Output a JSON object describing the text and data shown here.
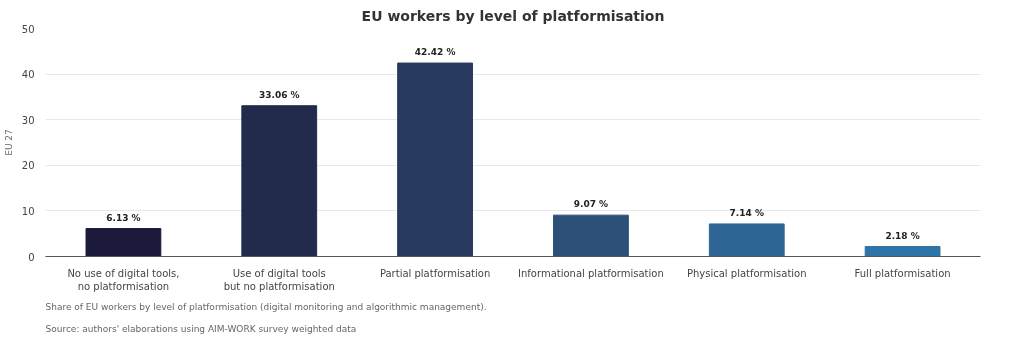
{
  "chart_data": {
    "type": "bar",
    "title": "EU workers by level of platformisation",
    "ylabel": "EU 27",
    "categories": [
      "No use of digital tools, no platformisation",
      "Use of digital tools but no platformisation",
      "Partial platformisation",
      "Informational platformisation",
      "Physical platformisation",
      "Full platformisation"
    ],
    "values": [
      6.13,
      33.06,
      42.42,
      9.07,
      7.14,
      2.18
    ],
    "value_labels": [
      "6.13 %",
      "33.06 %",
      "42.42 %",
      "9.07 %",
      "7.14 %",
      "2.18 %"
    ],
    "colors": [
      "#1c1a3a",
      "#222b4c",
      "#27395e",
      "#2d5079",
      "#2e6494",
      "#2e74a8"
    ],
    "ylim": [
      0,
      50
    ],
    "yticks": [
      0,
      10,
      20,
      30,
      40,
      50
    ],
    "grid": "y",
    "annotations": [
      "Share of EU workers by level of platformisation (digital monitoring and algorithmic management).",
      "Source: authors' elaborations using AIM-WORK survey weighted data"
    ]
  }
}
